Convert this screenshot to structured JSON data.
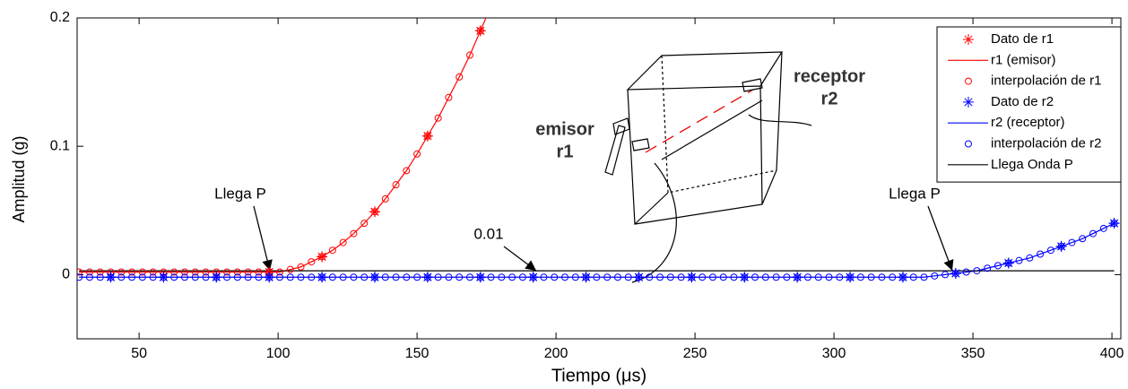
{
  "chart_data": {
    "type": "line",
    "xlabel": "Tiempo (μs)",
    "ylabel": "Amplitud  (g)",
    "xlim": [
      27.7,
      403.2
    ],
    "ylim": [
      -0.05,
      0.2
    ],
    "xticks": [
      50,
      100,
      150,
      200,
      250,
      300,
      350,
      400
    ],
    "yticks": [
      0,
      0.1,
      0.2
    ],
    "grid": false,
    "legend": "upper right",
    "series": [
      {
        "name": "Dato de r1",
        "color": "#ff0000",
        "style": "asterisk",
        "x": [
          96.8,
          115.8,
          134.8,
          153.8,
          172.8
        ],
        "values": [
          0.002,
          0.014,
          0.049,
          0.108,
          0.19
        ]
      },
      {
        "name": "r1 (emisor)",
        "color": "#ff0000",
        "style": "line",
        "x": [
          28.4,
          32.2,
          36,
          39.8,
          43.6,
          47.4,
          51.2,
          55,
          58.8,
          62.6,
          66.4,
          70.2,
          74,
          77.8,
          81.6,
          85.4,
          89.2,
          93,
          96.8,
          100.6,
          104.4,
          108.2,
          112,
          115.8,
          119.6,
          123.4,
          127.2,
          131,
          134.8,
          138.6,
          142.4,
          146.2,
          150,
          153.8,
          157.6,
          161.4,
          165.2,
          169,
          172.8,
          176.6,
          180.4
        ],
        "values": [
          0.002,
          0.002,
          0.002,
          0.002,
          0.002,
          0.002,
          0.002,
          0.002,
          0.002,
          0.002,
          0.002,
          0.002,
          0.002,
          0.002,
          0.002,
          0.002,
          0.002,
          0.002,
          0.002,
          0.002,
          0.004,
          0.006,
          0.01,
          0.014,
          0.019,
          0.025,
          0.032,
          0.04,
          0.049,
          0.059,
          0.07,
          0.081,
          0.094,
          0.108,
          0.122,
          0.138,
          0.154,
          0.171,
          0.19,
          0.209,
          0.229
        ]
      },
      {
        "name": "interpolación de r1",
        "color": "#ff0000",
        "style": "circle",
        "x": [
          28.4,
          32.2,
          36,
          39.8,
          43.6,
          47.4,
          51.2,
          55,
          58.8,
          62.6,
          66.4,
          70.2,
          74,
          77.8,
          81.6,
          85.4,
          89.2,
          93,
          96.8,
          100.6,
          104.4,
          108.2,
          112,
          115.8,
          119.6,
          123.4,
          127.2,
          131,
          134.8,
          138.6,
          142.4,
          146.2,
          150,
          153.8,
          157.6,
          161.4,
          165.2,
          169,
          172.8
        ],
        "values": [
          0.002,
          0.002,
          0.002,
          0.002,
          0.002,
          0.002,
          0.002,
          0.002,
          0.002,
          0.002,
          0.002,
          0.002,
          0.002,
          0.002,
          0.002,
          0.002,
          0.002,
          0.002,
          0.002,
          0.002,
          0.004,
          0.006,
          0.01,
          0.014,
          0.019,
          0.025,
          0.032,
          0.04,
          0.049,
          0.059,
          0.07,
          0.081,
          0.094,
          0.108,
          0.122,
          0.138,
          0.154,
          0.171,
          0.19
        ]
      },
      {
        "name": "Dato de r2",
        "color": "#0000ff",
        "style": "asterisk",
        "x": [
          39.8,
          58.8,
          77.8,
          96.8,
          115.8,
          134.8,
          153.8,
          172.8,
          191.8,
          210.8,
          229.8,
          248.8,
          267.8,
          286.8,
          305.8,
          324.8,
          343.8,
          362.8,
          381.8,
          400.8
        ],
        "values": [
          -0.002,
          -0.002,
          -0.002,
          -0.002,
          -0.002,
          -0.002,
          -0.002,
          -0.002,
          -0.002,
          -0.002,
          -0.002,
          -0.002,
          -0.002,
          -0.002,
          -0.002,
          -0.002,
          0.001,
          0.009,
          0.022,
          0.04
        ]
      },
      {
        "name": "r2 (receptor)",
        "color": "#0000ff",
        "style": "line",
        "x": [
          28.4,
          32.2,
          36,
          39.8,
          43.6,
          47.4,
          51.2,
          55,
          58.8,
          62.6,
          66.4,
          70.2,
          74,
          77.8,
          81.6,
          85.4,
          89.2,
          93,
          96.8,
          100.6,
          104.4,
          108.2,
          112,
          115.8,
          119.6,
          123.4,
          127.2,
          131,
          134.8,
          138.6,
          142.4,
          146.2,
          150,
          153.8,
          157.6,
          161.4,
          165.2,
          169,
          172.8,
          176.6,
          180.4,
          184.2,
          188,
          191.8,
          195.6,
          199.4,
          203.2,
          207,
          210.8,
          214.6,
          218.4,
          222.2,
          226,
          229.8,
          233.6,
          237.4,
          241.2,
          245,
          248.8,
          252.6,
          256.4,
          260.2,
          264,
          267.8,
          271.6,
          275.4,
          279.2,
          283,
          286.8,
          290.6,
          294.4,
          298.2,
          302,
          305.8,
          309.6,
          313.4,
          317.2,
          321,
          324.8,
          328.6,
          332.4,
          336.2,
          340,
          343.8,
          347.6,
          351.4,
          355.2,
          359,
          362.8,
          366.6,
          370.4,
          374.2,
          378,
          381.8,
          385.6,
          389.4,
          393.2,
          397,
          400.8
        ],
        "values": [
          -0.002,
          -0.002,
          -0.002,
          -0.002,
          -0.002,
          -0.002,
          -0.002,
          -0.002,
          -0.002,
          -0.002,
          -0.002,
          -0.002,
          -0.002,
          -0.002,
          -0.002,
          -0.002,
          -0.002,
          -0.002,
          -0.002,
          -0.002,
          -0.002,
          -0.002,
          -0.002,
          -0.002,
          -0.002,
          -0.002,
          -0.002,
          -0.002,
          -0.002,
          -0.002,
          -0.002,
          -0.002,
          -0.002,
          -0.002,
          -0.002,
          -0.002,
          -0.002,
          -0.002,
          -0.002,
          -0.002,
          -0.002,
          -0.002,
          -0.002,
          -0.002,
          -0.002,
          -0.002,
          -0.002,
          -0.002,
          -0.002,
          -0.002,
          -0.002,
          -0.002,
          -0.002,
          -0.002,
          -0.002,
          -0.002,
          -0.002,
          -0.002,
          -0.002,
          -0.002,
          -0.002,
          -0.002,
          -0.002,
          -0.002,
          -0.002,
          -0.002,
          -0.002,
          -0.002,
          -0.002,
          -0.002,
          -0.002,
          -0.002,
          -0.002,
          -0.002,
          -0.002,
          -0.002,
          -0.002,
          -0.002,
          -0.002,
          -0.002,
          -0.002,
          -0.001,
          0.0,
          0.001,
          0.002,
          0.003,
          0.005,
          0.007,
          0.009,
          0.011,
          0.013,
          0.016,
          0.019,
          0.022,
          0.025,
          0.028,
          0.032,
          0.036,
          0.04
        ]
      },
      {
        "name": "interpolación de r2",
        "color": "#0000ff",
        "style": "circle",
        "x": [
          28.4,
          32.2,
          36,
          39.8,
          43.6,
          47.4,
          51.2,
          55,
          58.8,
          62.6,
          66.4,
          70.2,
          74,
          77.8,
          81.6,
          85.4,
          89.2,
          93,
          96.8,
          100.6,
          104.4,
          108.2,
          112,
          115.8,
          119.6,
          123.4,
          127.2,
          131,
          134.8,
          138.6,
          142.4,
          146.2,
          150,
          153.8,
          157.6,
          161.4,
          165.2,
          169,
          172.8,
          176.6,
          180.4,
          184.2,
          188,
          191.8,
          195.6,
          199.4,
          203.2,
          207,
          210.8,
          214.6,
          218.4,
          222.2,
          226,
          229.8,
          233.6,
          237.4,
          241.2,
          245,
          248.8,
          252.6,
          256.4,
          260.2,
          264,
          267.8,
          271.6,
          275.4,
          279.2,
          283,
          286.8,
          290.6,
          294.4,
          298.2,
          302,
          305.8,
          309.6,
          313.4,
          317.2,
          321,
          324.8,
          328.6,
          332.4,
          336.2,
          340,
          343.8,
          347.6,
          351.4,
          355.2,
          359,
          362.8,
          366.6,
          370.4,
          374.2,
          378,
          381.8,
          385.6,
          389.4,
          393.2,
          397,
          400.8
        ],
        "values": [
          -0.002,
          -0.002,
          -0.002,
          -0.002,
          -0.002,
          -0.002,
          -0.002,
          -0.002,
          -0.002,
          -0.002,
          -0.002,
          -0.002,
          -0.002,
          -0.002,
          -0.002,
          -0.002,
          -0.002,
          -0.002,
          -0.002,
          -0.002,
          -0.002,
          -0.002,
          -0.002,
          -0.002,
          -0.002,
          -0.002,
          -0.002,
          -0.002,
          -0.002,
          -0.002,
          -0.002,
          -0.002,
          -0.002,
          -0.002,
          -0.002,
          -0.002,
          -0.002,
          -0.002,
          -0.002,
          -0.002,
          -0.002,
          -0.002,
          -0.002,
          -0.002,
          -0.002,
          -0.002,
          -0.002,
          -0.002,
          -0.002,
          -0.002,
          -0.002,
          -0.002,
          -0.002,
          -0.002,
          -0.002,
          -0.002,
          -0.002,
          -0.002,
          -0.002,
          -0.002,
          -0.002,
          -0.002,
          -0.002,
          -0.002,
          -0.002,
          -0.002,
          -0.002,
          -0.002,
          -0.002,
          -0.002,
          -0.002,
          -0.002,
          -0.002,
          -0.002,
          -0.002,
          -0.002,
          -0.002,
          -0.002,
          -0.002,
          -0.002,
          -0.002,
          -0.001,
          0.0,
          0.001,
          0.002,
          0.003,
          0.005,
          0.007,
          0.009,
          0.011,
          0.013,
          0.016,
          0.019,
          0.022,
          0.025,
          0.028,
          0.032,
          0.036,
          0.04
        ]
      },
      {
        "name": "Llega Onda P",
        "color": "#000000",
        "style": "line",
        "x": [
          28.4,
          400.8
        ],
        "values": [
          0.003,
          0.003
        ]
      }
    ],
    "annotations": [
      "Llega P",
      "0.01",
      "Llega P"
    ],
    "inset_labels": [
      "emisor",
      "r1",
      "receptor",
      "r2"
    ]
  }
}
